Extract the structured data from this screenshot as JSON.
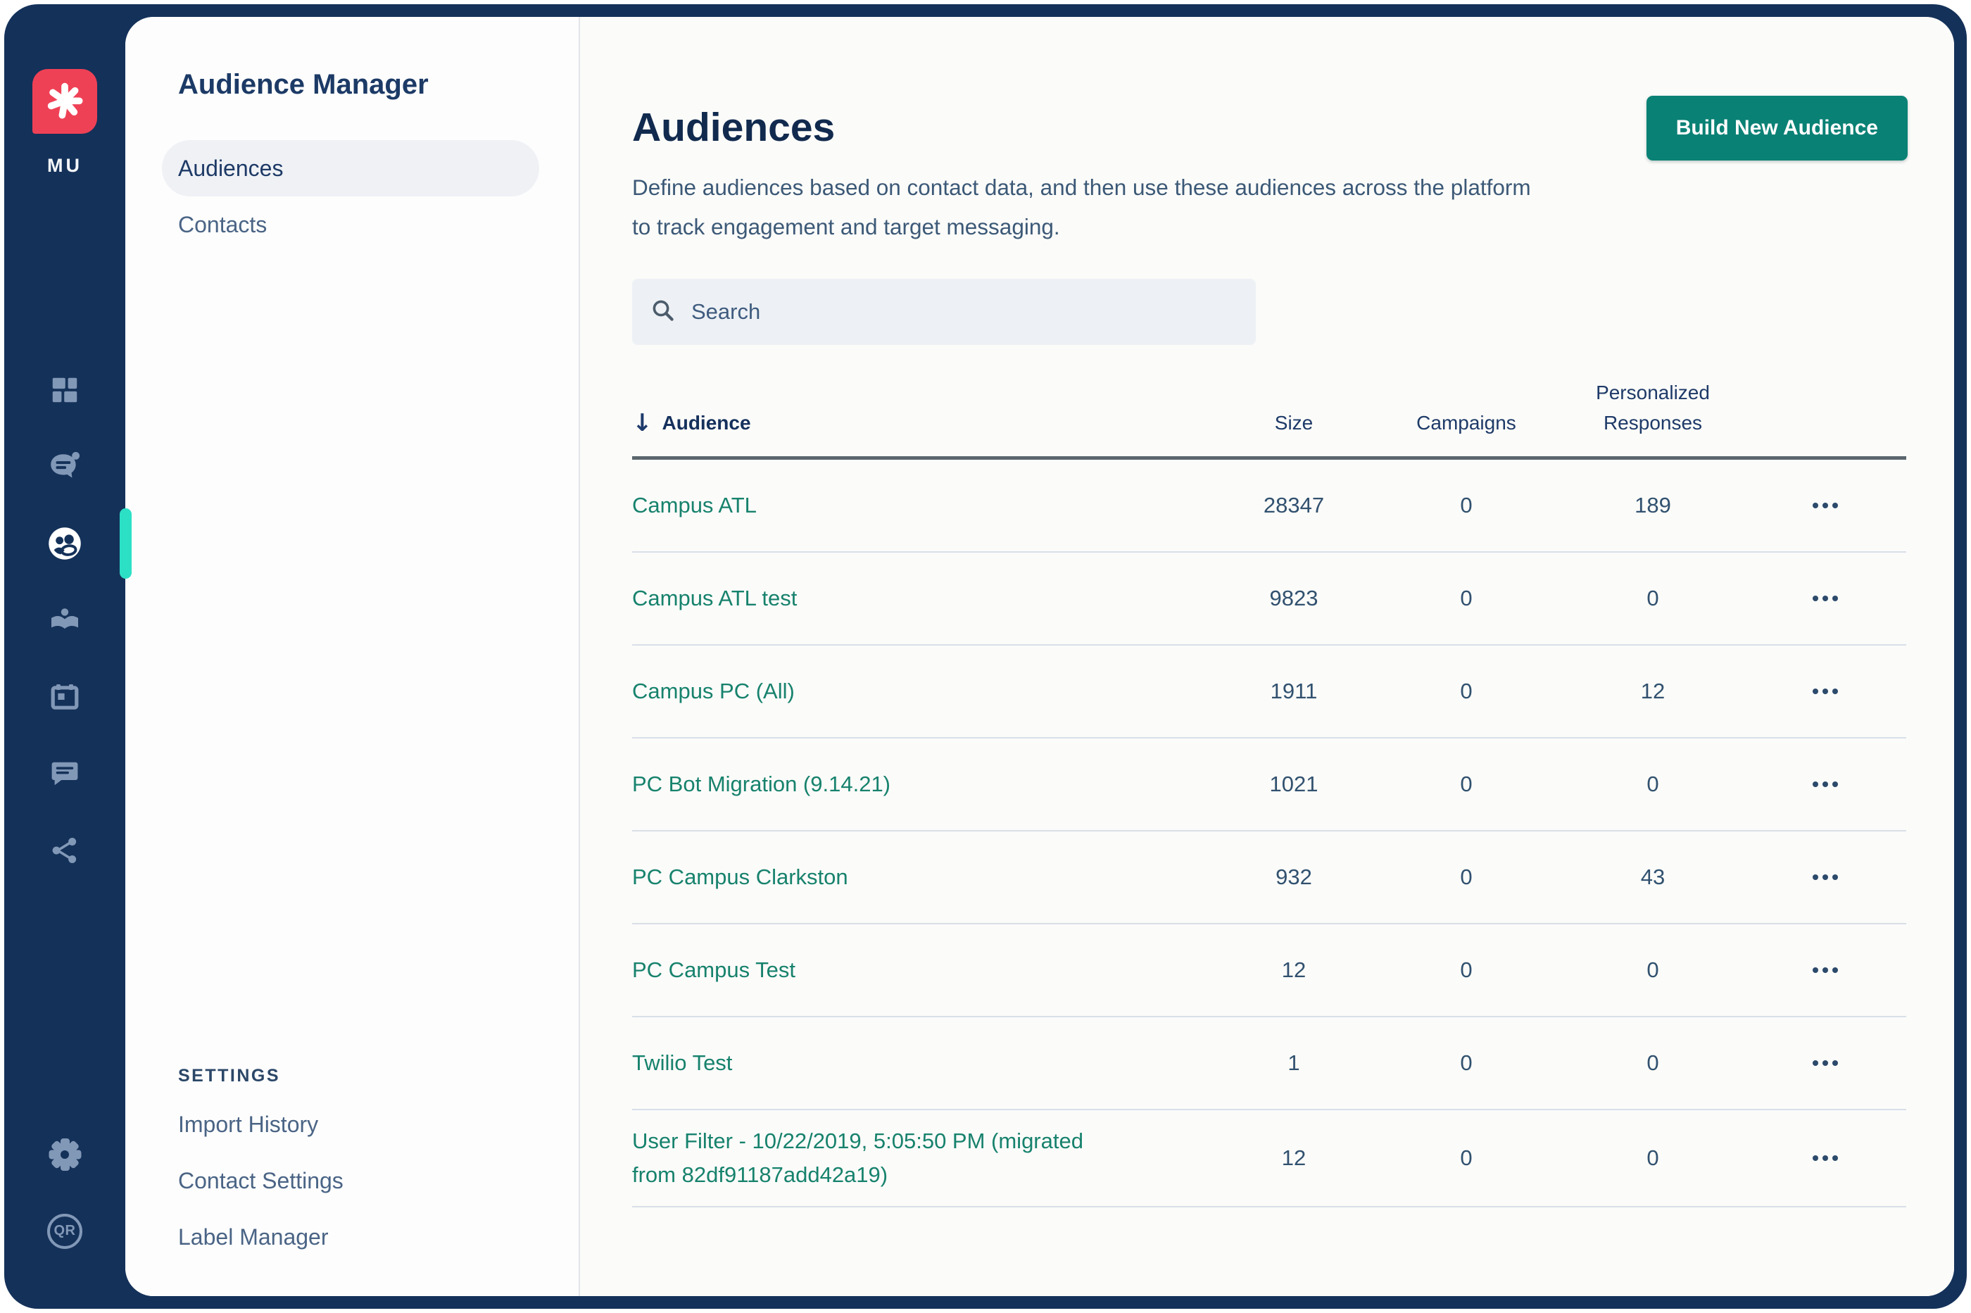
{
  "brand": {
    "initials": "MU",
    "logo_color": "#ef4156",
    "logo_icon": "asterisk-spark"
  },
  "colors": {
    "frame_navy": "#143159",
    "accent_teal_indicator": "#2ce0c6",
    "button_teal": "#0a8175",
    "link_teal": "#17826d",
    "rail_icon_gray": "#8298b7",
    "heading_navy": "#112a4e",
    "body_blue_gray": "#3c5977"
  },
  "icon_rail": {
    "items": [
      "dashboard",
      "conversations",
      "audiences",
      "knowledge",
      "calendar",
      "messages",
      "share"
    ],
    "active_item": "audiences",
    "bottom_items": [
      "settings-gear",
      "qr-code"
    ]
  },
  "sidebar": {
    "title": "Audience Manager",
    "items": [
      {
        "label": "Audiences",
        "active": true
      },
      {
        "label": "Contacts",
        "active": false
      }
    ],
    "settings_heading": "SETTINGS",
    "settings_items": [
      {
        "label": "Import History"
      },
      {
        "label": "Contact Settings"
      },
      {
        "label": "Label Manager"
      }
    ]
  },
  "main": {
    "title": "Audiences",
    "description": "Define audiences based on contact data, and then use these audiences across the platform to track engagement and target messaging.",
    "build_button_label": "Build New Audience",
    "search": {
      "placeholder": "Search"
    },
    "table": {
      "sort_arrow": "↓",
      "columns": {
        "audience": "Audience",
        "size": "Size",
        "campaigns": "Campaigns",
        "responses": "Personalized Responses"
      },
      "rows": [
        {
          "name": "Campus ATL",
          "size": "28347",
          "campaigns": "0",
          "responses": "189"
        },
        {
          "name": "Campus ATL test",
          "size": "9823",
          "campaigns": "0",
          "responses": "0"
        },
        {
          "name": "Campus PC (All)",
          "size": "1911",
          "campaigns": "0",
          "responses": "12"
        },
        {
          "name": "PC Bot Migration (9.14.21)",
          "size": "1021",
          "campaigns": "0",
          "responses": "0"
        },
        {
          "name": "PC Campus Clarkston",
          "size": "932",
          "campaigns": "0",
          "responses": "43"
        },
        {
          "name": "PC Campus Test",
          "size": "12",
          "campaigns": "0",
          "responses": "0"
        },
        {
          "name": "Twilio Test",
          "size": "1",
          "campaigns": "0",
          "responses": "0"
        },
        {
          "name": "User Filter - 10/22/2019, 5:05:50 PM (migrated from 82df91187add42a19)",
          "size": "12",
          "campaigns": "0",
          "responses": "0"
        }
      ]
    }
  }
}
